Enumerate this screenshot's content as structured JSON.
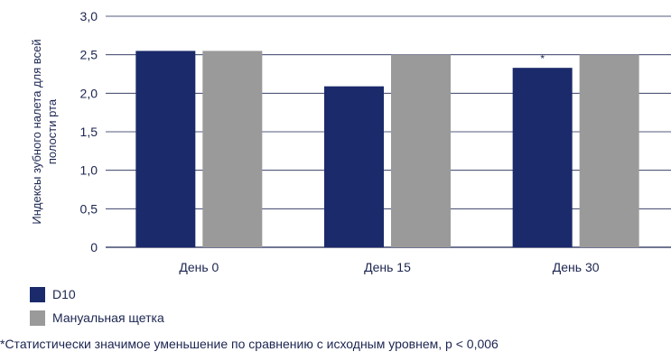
{
  "chart_data": {
    "type": "bar",
    "ylabel_lines": [
      "Индексы зубного налета для всей",
      "полости рта"
    ],
    "xlabel": "",
    "ylim": [
      0,
      3.0
    ],
    "yticks": [
      "0",
      "0,5",
      "1,0",
      "1,5",
      "2,0",
      "2,5",
      "3,0"
    ],
    "categories": [
      "День 0",
      "День 15",
      "День 30"
    ],
    "series": [
      {
        "name": "D10",
        "color": "#1b2a6b",
        "values": [
          2.55,
          2.09,
          2.33
        ]
      },
      {
        "name": "Мануальная щетка",
        "color": "#9a9a9a",
        "values": [
          2.55,
          2.5,
          2.5
        ]
      }
    ],
    "annotations": [
      {
        "text": "*",
        "series": 0,
        "category": 2
      }
    ],
    "grid": true,
    "legend_position": "bottom-left"
  },
  "footnote": "*Статистически значимое уменьшение по сравнению с исходным уровнем, p < 0,006"
}
